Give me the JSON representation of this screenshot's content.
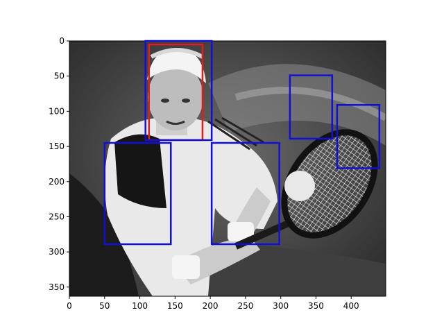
{
  "figure": {
    "photo_subject": "Grayscale photo of a tennis player hitting a backhand with a racket",
    "x_ticks": [
      "0",
      "50",
      "100",
      "150",
      "200",
      "250",
      "300",
      "350",
      "400"
    ],
    "y_ticks": [
      "0",
      "50",
      "100",
      "150",
      "200",
      "250",
      "300",
      "350"
    ],
    "x_range": [
      0,
      449
    ],
    "y_range": [
      0,
      363
    ],
    "box_colors": {
      "red": "#e01c1c",
      "blue": "#1010d8"
    }
  },
  "chart_data": {
    "type": "image-with-bounding-boxes",
    "xlim": [
      0,
      449
    ],
    "ylim": [
      363,
      0
    ],
    "boxes": [
      {
        "color": "red",
        "x0": 113,
        "y0": 5,
        "x1": 189,
        "y1": 141
      },
      {
        "color": "blue",
        "x0": 108,
        "y0": 0,
        "x1": 202,
        "y1": 141
      },
      {
        "color": "blue",
        "x0": 50,
        "y0": 145,
        "x1": 144,
        "y1": 289
      },
      {
        "color": "blue",
        "x0": 202,
        "y0": 145,
        "x1": 298,
        "y1": 289
      },
      {
        "color": "blue",
        "x0": 313,
        "y0": 49,
        "x1": 373,
        "y1": 139
      },
      {
        "color": "blue",
        "x0": 380,
        "y0": 91,
        "x1": 440,
        "y1": 181
      }
    ]
  }
}
